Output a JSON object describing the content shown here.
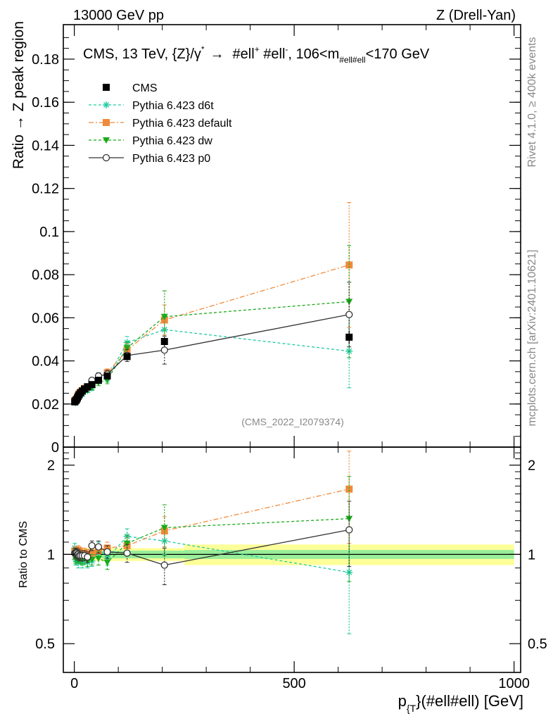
{
  "header": {
    "left": "13000 GeV pp",
    "right": "Z (Drell-Yan)"
  },
  "side_labels": {
    "rivet": "Rivet 4.1.0, ≥ 400k events",
    "mcplots": "mcplots.cern.ch [arXiv:2401.10621]"
  },
  "chart_data": {
    "type": "line",
    "title": {
      "main": "CMS, 13 TeV, {Z}/γ",
      "sup": "*",
      "arrow": "→",
      "ll1": "#ell",
      "ll1sup": "+",
      "ll2": " #ell",
      "ll2sup": "-",
      "mass": ",  106<m",
      "masssub": "#ell#ell",
      "massend": "<170 GeV"
    },
    "analysis_id": "(CMS_2022_I2079374)",
    "xlabel": {
      "main": "p",
      "sub": "{T",
      "rest": "}(#ell#ell) [GeV]"
    },
    "ylabel_top": "Ratio → Z peak region",
    "ylabel_bottom": "Ratio to CMS",
    "xlim": [
      -25,
      1015
    ],
    "ylim_top": [
      0,
      0.196
    ],
    "ylim_bottom": [
      0.4,
      2.3
    ],
    "x_ticks": [
      0,
      500,
      1000
    ],
    "x_tick_labels": [
      "0",
      "500",
      "1000"
    ],
    "y_ticks_top": [
      0,
      0.02,
      0.04,
      0.06,
      0.08,
      0.1,
      0.12,
      0.14,
      0.16,
      0.18
    ],
    "y_tick_labels_top": [
      "0",
      "0.02",
      "0.04",
      "0.06",
      "0.08",
      "0.1",
      "0.12",
      "0.14",
      "0.16",
      "0.18"
    ],
    "y_ticks_bottom": [
      0.5,
      1,
      2
    ],
    "y_tick_labels_bottom": [
      "0.5",
      "1",
      "2"
    ],
    "x": [
      1,
      3,
      5,
      7,
      9,
      11,
      14,
      18,
      23,
      30,
      40,
      55,
      75,
      120,
      205,
      625
    ],
    "series": [
      {
        "name": "CMS",
        "color": "#000000",
        "marker": "square",
        "dash": "",
        "values": [
          0.021,
          0.0215,
          0.022,
          0.0228,
          0.0236,
          0.0243,
          0.0252,
          0.026,
          0.027,
          0.028,
          0.029,
          0.031,
          0.033,
          0.042,
          0.049,
          0.051
        ],
        "errors": [
          0.0005,
          0.0005,
          0.0005,
          0.0005,
          0.0005,
          0.0005,
          0.0005,
          0.0005,
          0.0006,
          0.0006,
          0.0007,
          0.0008,
          0.001,
          0.0015,
          0.002,
          0.003
        ],
        "ratio": [
          1,
          1,
          1,
          1,
          1,
          1,
          1,
          1,
          1,
          1,
          1,
          1,
          1,
          1,
          1,
          1
        ]
      },
      {
        "name": "Pythia 6.423 d6t",
        "color": "#21c9a2",
        "marker": "star",
        "dash": "4,3",
        "values": [
          0.022,
          0.0206,
          0.0212,
          0.023,
          0.0223,
          0.024,
          0.0245,
          0.0245,
          0.0265,
          0.0263,
          0.0275,
          0.0325,
          0.032,
          0.0485,
          0.0545,
          0.0445
        ],
        "errors": [
          0.0008,
          0.0008,
          0.0008,
          0.0008,
          0.0008,
          0.0008,
          0.0009,
          0.0009,
          0.001,
          0.001,
          0.0012,
          0.0015,
          0.0018,
          0.0028,
          0.0055,
          0.017
        ],
        "ratio": [
          1.05,
          0.96,
          0.96,
          1.01,
          0.94,
          0.99,
          0.97,
          0.94,
          0.98,
          0.94,
          0.95,
          1.05,
          0.97,
          1.15,
          1.11,
          0.87
        ],
        "ratio_err": [
          0.04,
          0.04,
          0.04,
          0.04,
          0.04,
          0.04,
          0.04,
          0.04,
          0.04,
          0.04,
          0.04,
          0.05,
          0.05,
          0.07,
          0.11,
          0.33
        ]
      },
      {
        "name": "Pythia 6.423 default",
        "color": "#f08a3a",
        "marker": "square",
        "dash": "7,3,2,3",
        "values": [
          0.0215,
          0.022,
          0.0222,
          0.023,
          0.0242,
          0.0248,
          0.0255,
          0.0262,
          0.0272,
          0.028,
          0.0292,
          0.0318,
          0.0345,
          0.045,
          0.059,
          0.0845
        ],
        "errors": [
          0.0008,
          0.0008,
          0.0008,
          0.0008,
          0.0008,
          0.0008,
          0.0009,
          0.0009,
          0.001,
          0.001,
          0.0012,
          0.0015,
          0.0018,
          0.003,
          0.007,
          0.029
        ],
        "ratio": [
          1.02,
          1.02,
          1.01,
          1.01,
          1.03,
          1.02,
          1.01,
          1.01,
          1.01,
          1.0,
          1.01,
          1.03,
          1.05,
          1.07,
          1.2,
          1.66
        ],
        "ratio_err": [
          0.04,
          0.04,
          0.04,
          0.04,
          0.04,
          0.04,
          0.04,
          0.04,
          0.04,
          0.04,
          0.04,
          0.05,
          0.05,
          0.07,
          0.14,
          0.57
        ]
      },
      {
        "name": "Pythia 6.423 dw",
        "color": "#1aaa1a",
        "marker": "triangle-down",
        "dash": "4,3",
        "values": [
          0.021,
          0.0208,
          0.0215,
          0.0225,
          0.0232,
          0.0238,
          0.0245,
          0.025,
          0.0262,
          0.0265,
          0.0278,
          0.03,
          0.0312,
          0.046,
          0.0605,
          0.0675
        ],
        "errors": [
          0.0008,
          0.0008,
          0.0008,
          0.0008,
          0.0008,
          0.0008,
          0.0009,
          0.0009,
          0.001,
          0.001,
          0.0012,
          0.0015,
          0.0018,
          0.0028,
          0.012,
          0.026
        ],
        "ratio": [
          1.0,
          0.97,
          0.98,
          0.99,
          0.98,
          0.98,
          0.97,
          0.96,
          0.97,
          0.95,
          0.96,
          0.97,
          0.94,
          1.09,
          1.23,
          1.32
        ],
        "ratio_err": [
          0.04,
          0.04,
          0.04,
          0.04,
          0.04,
          0.04,
          0.04,
          0.04,
          0.04,
          0.04,
          0.04,
          0.05,
          0.05,
          0.07,
          0.24,
          0.51
        ]
      },
      {
        "name": "Pythia 6.423 p0",
        "color": "#333333",
        "marker": "circle-open",
        "dash": "",
        "values": [
          0.0212,
          0.0218,
          0.0222,
          0.0228,
          0.0235,
          0.024,
          0.025,
          0.0258,
          0.0268,
          0.0275,
          0.031,
          0.033,
          0.0338,
          0.0425,
          0.045,
          0.0615
        ],
        "errors": [
          0.0008,
          0.0008,
          0.0008,
          0.0008,
          0.0008,
          0.0008,
          0.0009,
          0.0009,
          0.001,
          0.001,
          0.0012,
          0.0015,
          0.0018,
          0.0028,
          0.0065,
          0.015
        ],
        "ratio": [
          1.01,
          1.01,
          1.01,
          1.0,
          1.0,
          0.99,
          0.99,
          0.99,
          0.99,
          0.98,
          1.07,
          1.06,
          1.02,
          1.01,
          0.92,
          1.21
        ],
        "ratio_err": [
          0.04,
          0.04,
          0.04,
          0.04,
          0.04,
          0.04,
          0.04,
          0.04,
          0.04,
          0.04,
          0.04,
          0.05,
          0.05,
          0.07,
          0.13,
          0.3
        ]
      }
    ],
    "uncertainty_band": {
      "green_edges": [
        0,
        250,
        1000
      ],
      "green_halfwidth": [
        0.03,
        0.035
      ],
      "yellow_halfwidth": [
        0.05,
        0.08
      ],
      "green_color": "#99ee99",
      "yellow_color": "#ffff99"
    }
  }
}
